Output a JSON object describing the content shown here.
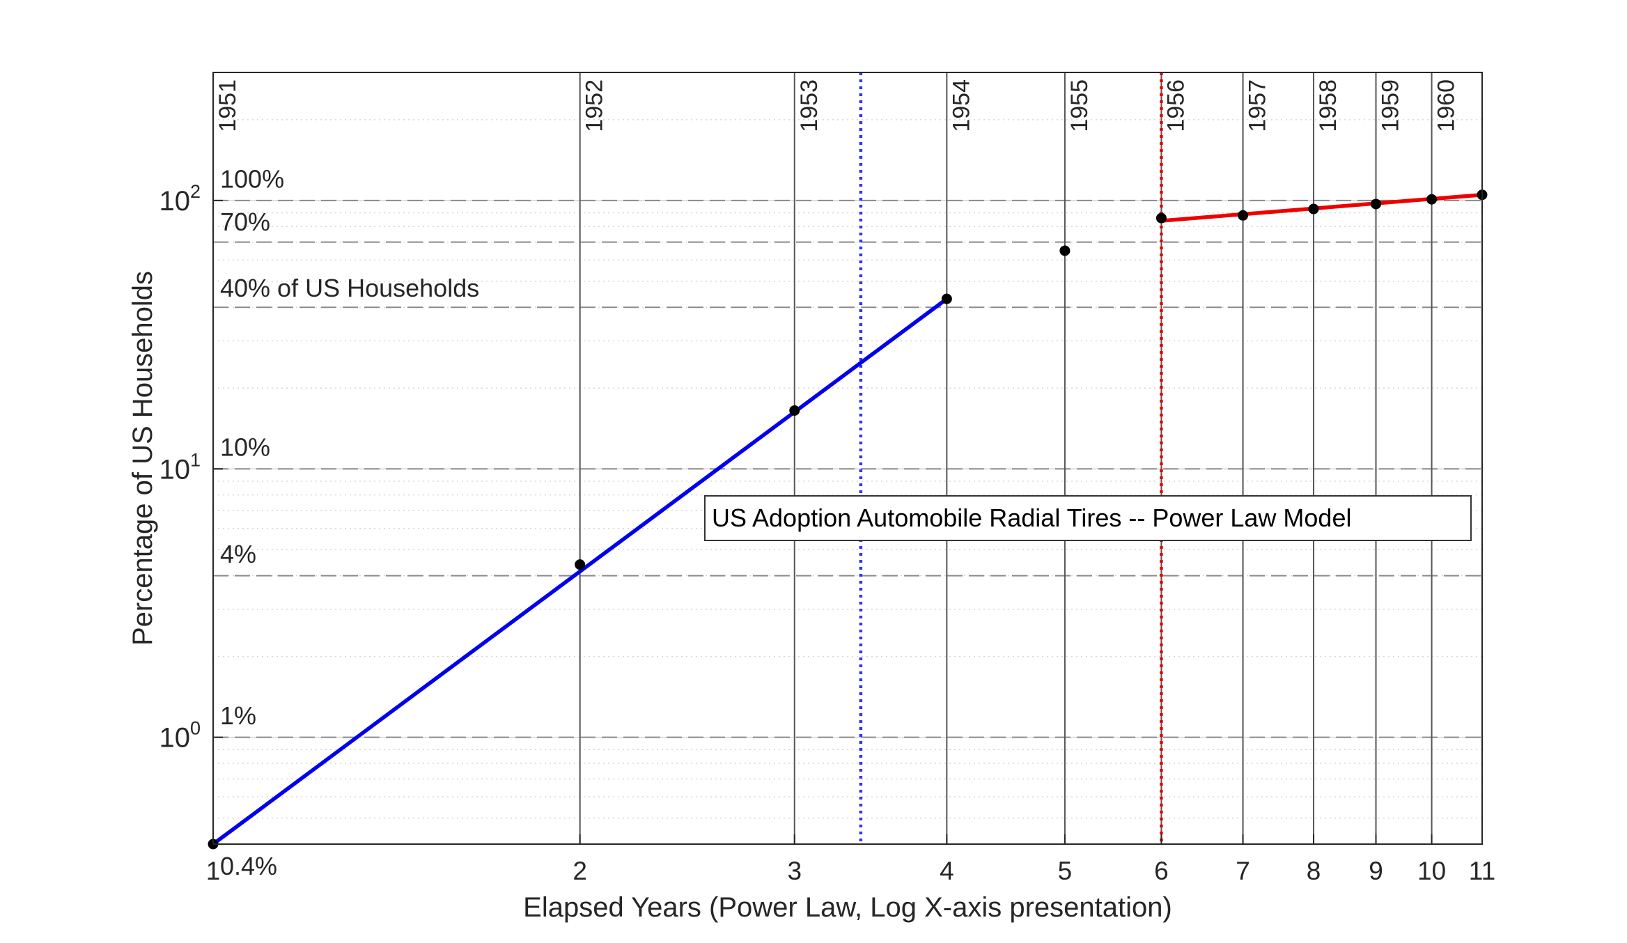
{
  "chart_data": {
    "type": "scatter",
    "xscale": "log",
    "yscale": "log",
    "xlim": [
      1,
      11
    ],
    "ylim": [
      0.4,
      300
    ],
    "xlabel": "Elapsed Years (Power Law, Log X-axis presentation)",
    "ylabel": "Percentage of US Households",
    "x_ticks": [
      1,
      2,
      3,
      4,
      5,
      6,
      7,
      8,
      9,
      10,
      11
    ],
    "y_ticks": [
      {
        "value": 1,
        "label": "10",
        "exp": "0"
      },
      {
        "value": 10,
        "label": "10",
        "exp": "1"
      },
      {
        "value": 100,
        "label": "10",
        "exp": "2"
      }
    ],
    "grid": "minor dotted, major solid",
    "points": {
      "x": [
        1,
        2,
        3,
        4,
        5,
        6,
        7,
        8,
        9,
        10,
        11
      ],
      "y": [
        0.4,
        4.4,
        16.5,
        43,
        65,
        86,
        88,
        93,
        97,
        101,
        105
      ]
    },
    "series": [
      {
        "kind": "fit",
        "color": "#0000ee",
        "x": [
          1,
          4
        ],
        "y": [
          0.4,
          43
        ]
      },
      {
        "kind": "fit",
        "color": "#ee0000",
        "x": [
          6,
          11
        ],
        "y": [
          84,
          105
        ]
      }
    ],
    "year_lines": [
      {
        "x": 1,
        "label": "1951"
      },
      {
        "x": 2,
        "label": "1952"
      },
      {
        "x": 3,
        "label": "1953"
      },
      {
        "x": 4,
        "label": "1954"
      },
      {
        "x": 5,
        "label": "1955"
      },
      {
        "x": 6,
        "label": "1956"
      },
      {
        "x": 7,
        "label": "1957"
      },
      {
        "x": 8,
        "label": "1958"
      },
      {
        "x": 9,
        "label": "1959"
      },
      {
        "x": 10,
        "label": "1960"
      }
    ],
    "vertical_markers": [
      {
        "x": 3.4,
        "color": "#3333ff",
        "style": "dotted"
      },
      {
        "x": 6,
        "color": "#ee0000",
        "style": "dotted"
      }
    ],
    "percent_lines": [
      {
        "y": 100,
        "label": "100%",
        "label_y": 120
      },
      {
        "y": 70,
        "label": "70%",
        "label_y": 83
      },
      {
        "y": 40,
        "label": "40% of US Households",
        "label_y": 47
      },
      {
        "y": 10,
        "label": "10%",
        "label_y": 12
      },
      {
        "y": 4,
        "label": "4%",
        "label_y": 4.8
      },
      {
        "y": 1,
        "label": "1%",
        "label_y": 1.2
      },
      {
        "y": 0.4,
        "label": "0.4%",
        "label_y": 0.33
      }
    ],
    "legend": {
      "text": "US Adoption Automobile Radial Tires -- Power Law Model",
      "placement": "center-right"
    }
  }
}
